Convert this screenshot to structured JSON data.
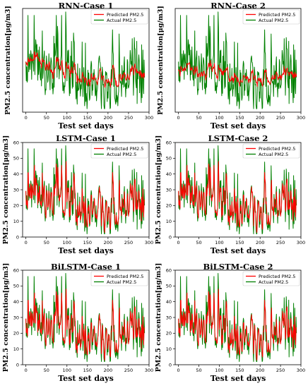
{
  "chart_data": [
    {
      "type": "line",
      "title": "RNN-Case 1",
      "xlabel": "Test set days",
      "ylabel": "PM2.5 concentration[μg/m3]",
      "xlim": [
        -8,
        300
      ],
      "ylim": [
        0,
        60
      ],
      "xticks": [
        0,
        50,
        100,
        150,
        200,
        250,
        300
      ],
      "yticks": [],
      "legend": "top-right",
      "series": [
        {
          "name": "Predicted PM2.5",
          "color": "#ff0000",
          "model": "rnn1"
        },
        {
          "name": "Actual PM2.5",
          "color": "#008000",
          "model": "actual"
        }
      ]
    },
    {
      "type": "line",
      "title": "RNN-Case 2",
      "xlabel": "Test set days",
      "ylabel": "PM2.5 concentration[μg/m3]",
      "xlim": [
        -8,
        300
      ],
      "ylim": [
        0,
        60
      ],
      "xticks": [
        0,
        50,
        100,
        150,
        200,
        250,
        300
      ],
      "yticks": [],
      "legend": "top-right",
      "series": [
        {
          "name": "Predicted PM2.5",
          "color": "#ff0000",
          "model": "rnn2"
        },
        {
          "name": "Actual PM2.5",
          "color": "#008000",
          "model": "actual"
        }
      ]
    },
    {
      "type": "line",
      "title": "LSTM-Case 1",
      "xlabel": "Test set days",
      "ylabel": "PM2.5 concentration[μg/m3]",
      "xlim": [
        -8,
        300
      ],
      "ylim": [
        0,
        60
      ],
      "xticks": [
        0,
        50,
        100,
        150,
        200,
        250,
        300
      ],
      "yticks": [
        0,
        10,
        20,
        30,
        40,
        50,
        60
      ],
      "legend": "top-right",
      "series": [
        {
          "name": "Predicted PM2.5",
          "color": "#ff0000",
          "model": "close"
        },
        {
          "name": "Actual PM2.5",
          "color": "#008000",
          "model": "actual"
        }
      ]
    },
    {
      "type": "line",
      "title": "LSTM-Case 2",
      "xlabel": "Test set days",
      "ylabel": "PM2.5 concentration[μg/m3]",
      "xlim": [
        -8,
        300
      ],
      "ylim": [
        0,
        60
      ],
      "xticks": [
        0,
        50,
        100,
        150,
        200,
        250,
        300
      ],
      "yticks": [
        0,
        10,
        20,
        30,
        40,
        50,
        60
      ],
      "legend": "top-right",
      "series": [
        {
          "name": "Predicted PM2.5",
          "color": "#ff0000",
          "model": "close"
        },
        {
          "name": "Actual PM2.5",
          "color": "#008000",
          "model": "actual"
        }
      ]
    },
    {
      "type": "line",
      "title": "BiLSTM-Case 1",
      "xlabel": "Test set days",
      "ylabel": "PM2.5 concentration[μg/m3]",
      "xlim": [
        -8,
        300
      ],
      "ylim": [
        0,
        60
      ],
      "xticks": [
        0,
        50,
        100,
        150,
        200,
        250,
        300
      ],
      "yticks": [
        0,
        10,
        20,
        30,
        40,
        50,
        60
      ],
      "legend": "top-right",
      "series": [
        {
          "name": "Predicted PM2.5",
          "color": "#ff0000",
          "model": "close"
        },
        {
          "name": "Actual PM2.5",
          "color": "#008000",
          "model": "actual"
        }
      ]
    },
    {
      "type": "line",
      "title": "BiLSTM-Case 2",
      "xlabel": "Test set days",
      "ylabel": "PM2.5 concentration[μg/m3]",
      "xlim": [
        -8,
        300
      ],
      "ylim": [
        0,
        60
      ],
      "xticks": [
        0,
        50,
        100,
        150,
        200,
        250,
        300
      ],
      "yticks": [
        0,
        10,
        20,
        30,
        40,
        50,
        60
      ],
      "legend": "top-right",
      "series": [
        {
          "name": "Predicted PM2.5",
          "color": "#ff0000",
          "model": "close"
        },
        {
          "name": "Actual PM2.5",
          "color": "#008000",
          "model": "actual"
        }
      ]
    }
  ]
}
